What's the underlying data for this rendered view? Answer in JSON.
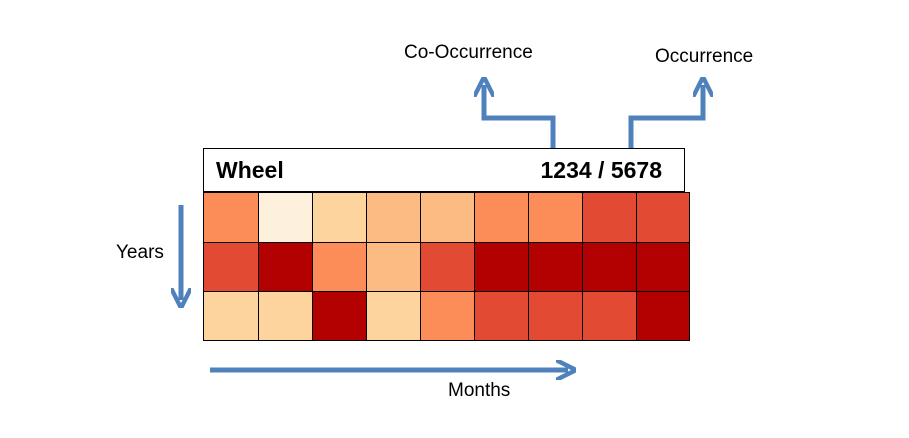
{
  "labels": {
    "co_occurrence": "Co-Occurrence",
    "occurrence": "Occurrence",
    "years": "Years",
    "months": "Months"
  },
  "header": {
    "title": "Wheel",
    "counts": "1234 / 5678"
  },
  "colors": {
    "arrow": "#4f81bd",
    "heat_1": "#fdf0dc",
    "heat_2": "#fdd49e",
    "heat_3": "#fdbb84",
    "heat_4": "#fc8d59",
    "heat_5": "#e34a33",
    "heat_6": "#b30000"
  },
  "heatmap": {
    "rows": 3,
    "columns": 9,
    "levels": [
      [
        4,
        1,
        2,
        3,
        3,
        4,
        4,
        5,
        5
      ],
      [
        5,
        6,
        4,
        3,
        5,
        6,
        6,
        6,
        6
      ],
      [
        2,
        2,
        6,
        2,
        4,
        5,
        5,
        5,
        6
      ]
    ]
  }
}
